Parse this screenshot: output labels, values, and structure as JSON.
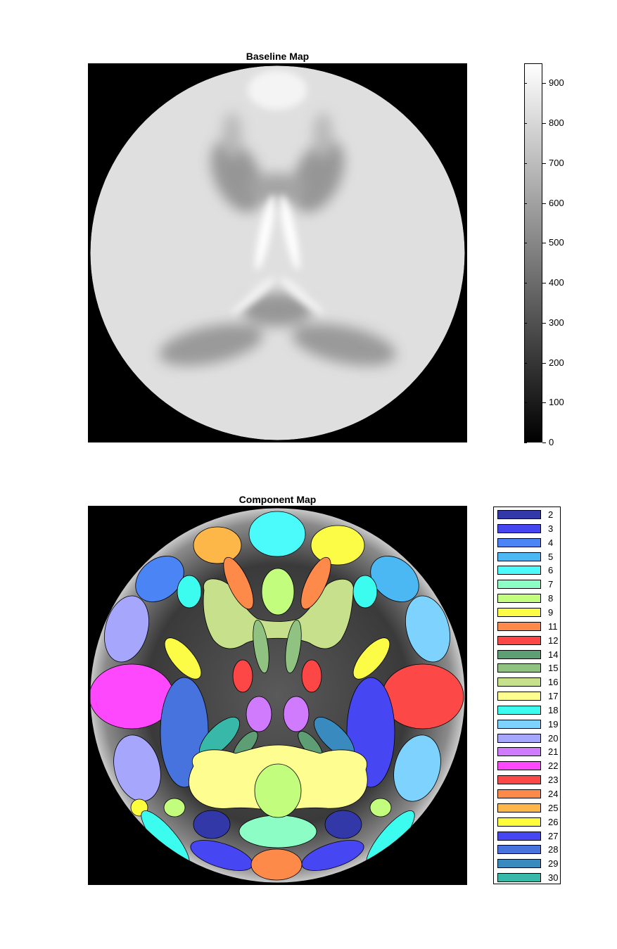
{
  "chart_data": [
    {
      "type": "heatmap",
      "title": "Baseline Map",
      "colormap": "gray",
      "clim": [
        0,
        950
      ],
      "colorbar": {
        "ticks": [
          0,
          100,
          200,
          300,
          400,
          500,
          600,
          700,
          800,
          900
        ],
        "tick_labels": [
          "0",
          "100",
          "200",
          "300",
          "400",
          "500",
          "600",
          "700",
          "800",
          "900"
        ]
      },
      "axes_visible": false,
      "background_value": 0,
      "disc_value": 830
    },
    {
      "type": "heatmap",
      "title": "Component Map",
      "legend_placement": "right",
      "legend": [
        {
          "label": "2",
          "color": "#3338a8"
        },
        {
          "label": "3",
          "color": "#4646f0"
        },
        {
          "label": "4",
          "color": "#4b85f5"
        },
        {
          "label": "5",
          "color": "#4bb8f3"
        },
        {
          "label": "6",
          "color": "#4bfbfb"
        },
        {
          "label": "7",
          "color": "#8bfdc5"
        },
        {
          "label": "8",
          "color": "#c3fd7e"
        },
        {
          "label": "9",
          "color": "#fcfc46"
        },
        {
          "label": "11",
          "color": "#fd8a4b"
        },
        {
          "label": "12",
          "color": "#fd4646"
        },
        {
          "label": "14",
          "color": "#5d9e75"
        },
        {
          "label": "15",
          "color": "#90c281"
        },
        {
          "label": "16",
          "color": "#c6e08b"
        },
        {
          "label": "17",
          "color": "#fdfd90"
        },
        {
          "label": "18",
          "color": "#3cfcf0"
        },
        {
          "label": "19",
          "color": "#7dd3fd"
        },
        {
          "label": "20",
          "color": "#a6a6fd"
        },
        {
          "label": "21",
          "color": "#d07afd"
        },
        {
          "label": "22",
          "color": "#fd48fd"
        },
        {
          "label": "23",
          "color": "#fd4848"
        },
        {
          "label": "24",
          "color": "#fd8a48"
        },
        {
          "label": "25",
          "color": "#fdb648"
        },
        {
          "label": "26",
          "color": "#fdfd3c"
        },
        {
          "label": "27",
          "color": "#4646f3"
        },
        {
          "label": "28",
          "color": "#4673dd"
        },
        {
          "label": "29",
          "color": "#398bbf"
        },
        {
          "label": "30",
          "color": "#38b8a8"
        }
      ]
    }
  ]
}
